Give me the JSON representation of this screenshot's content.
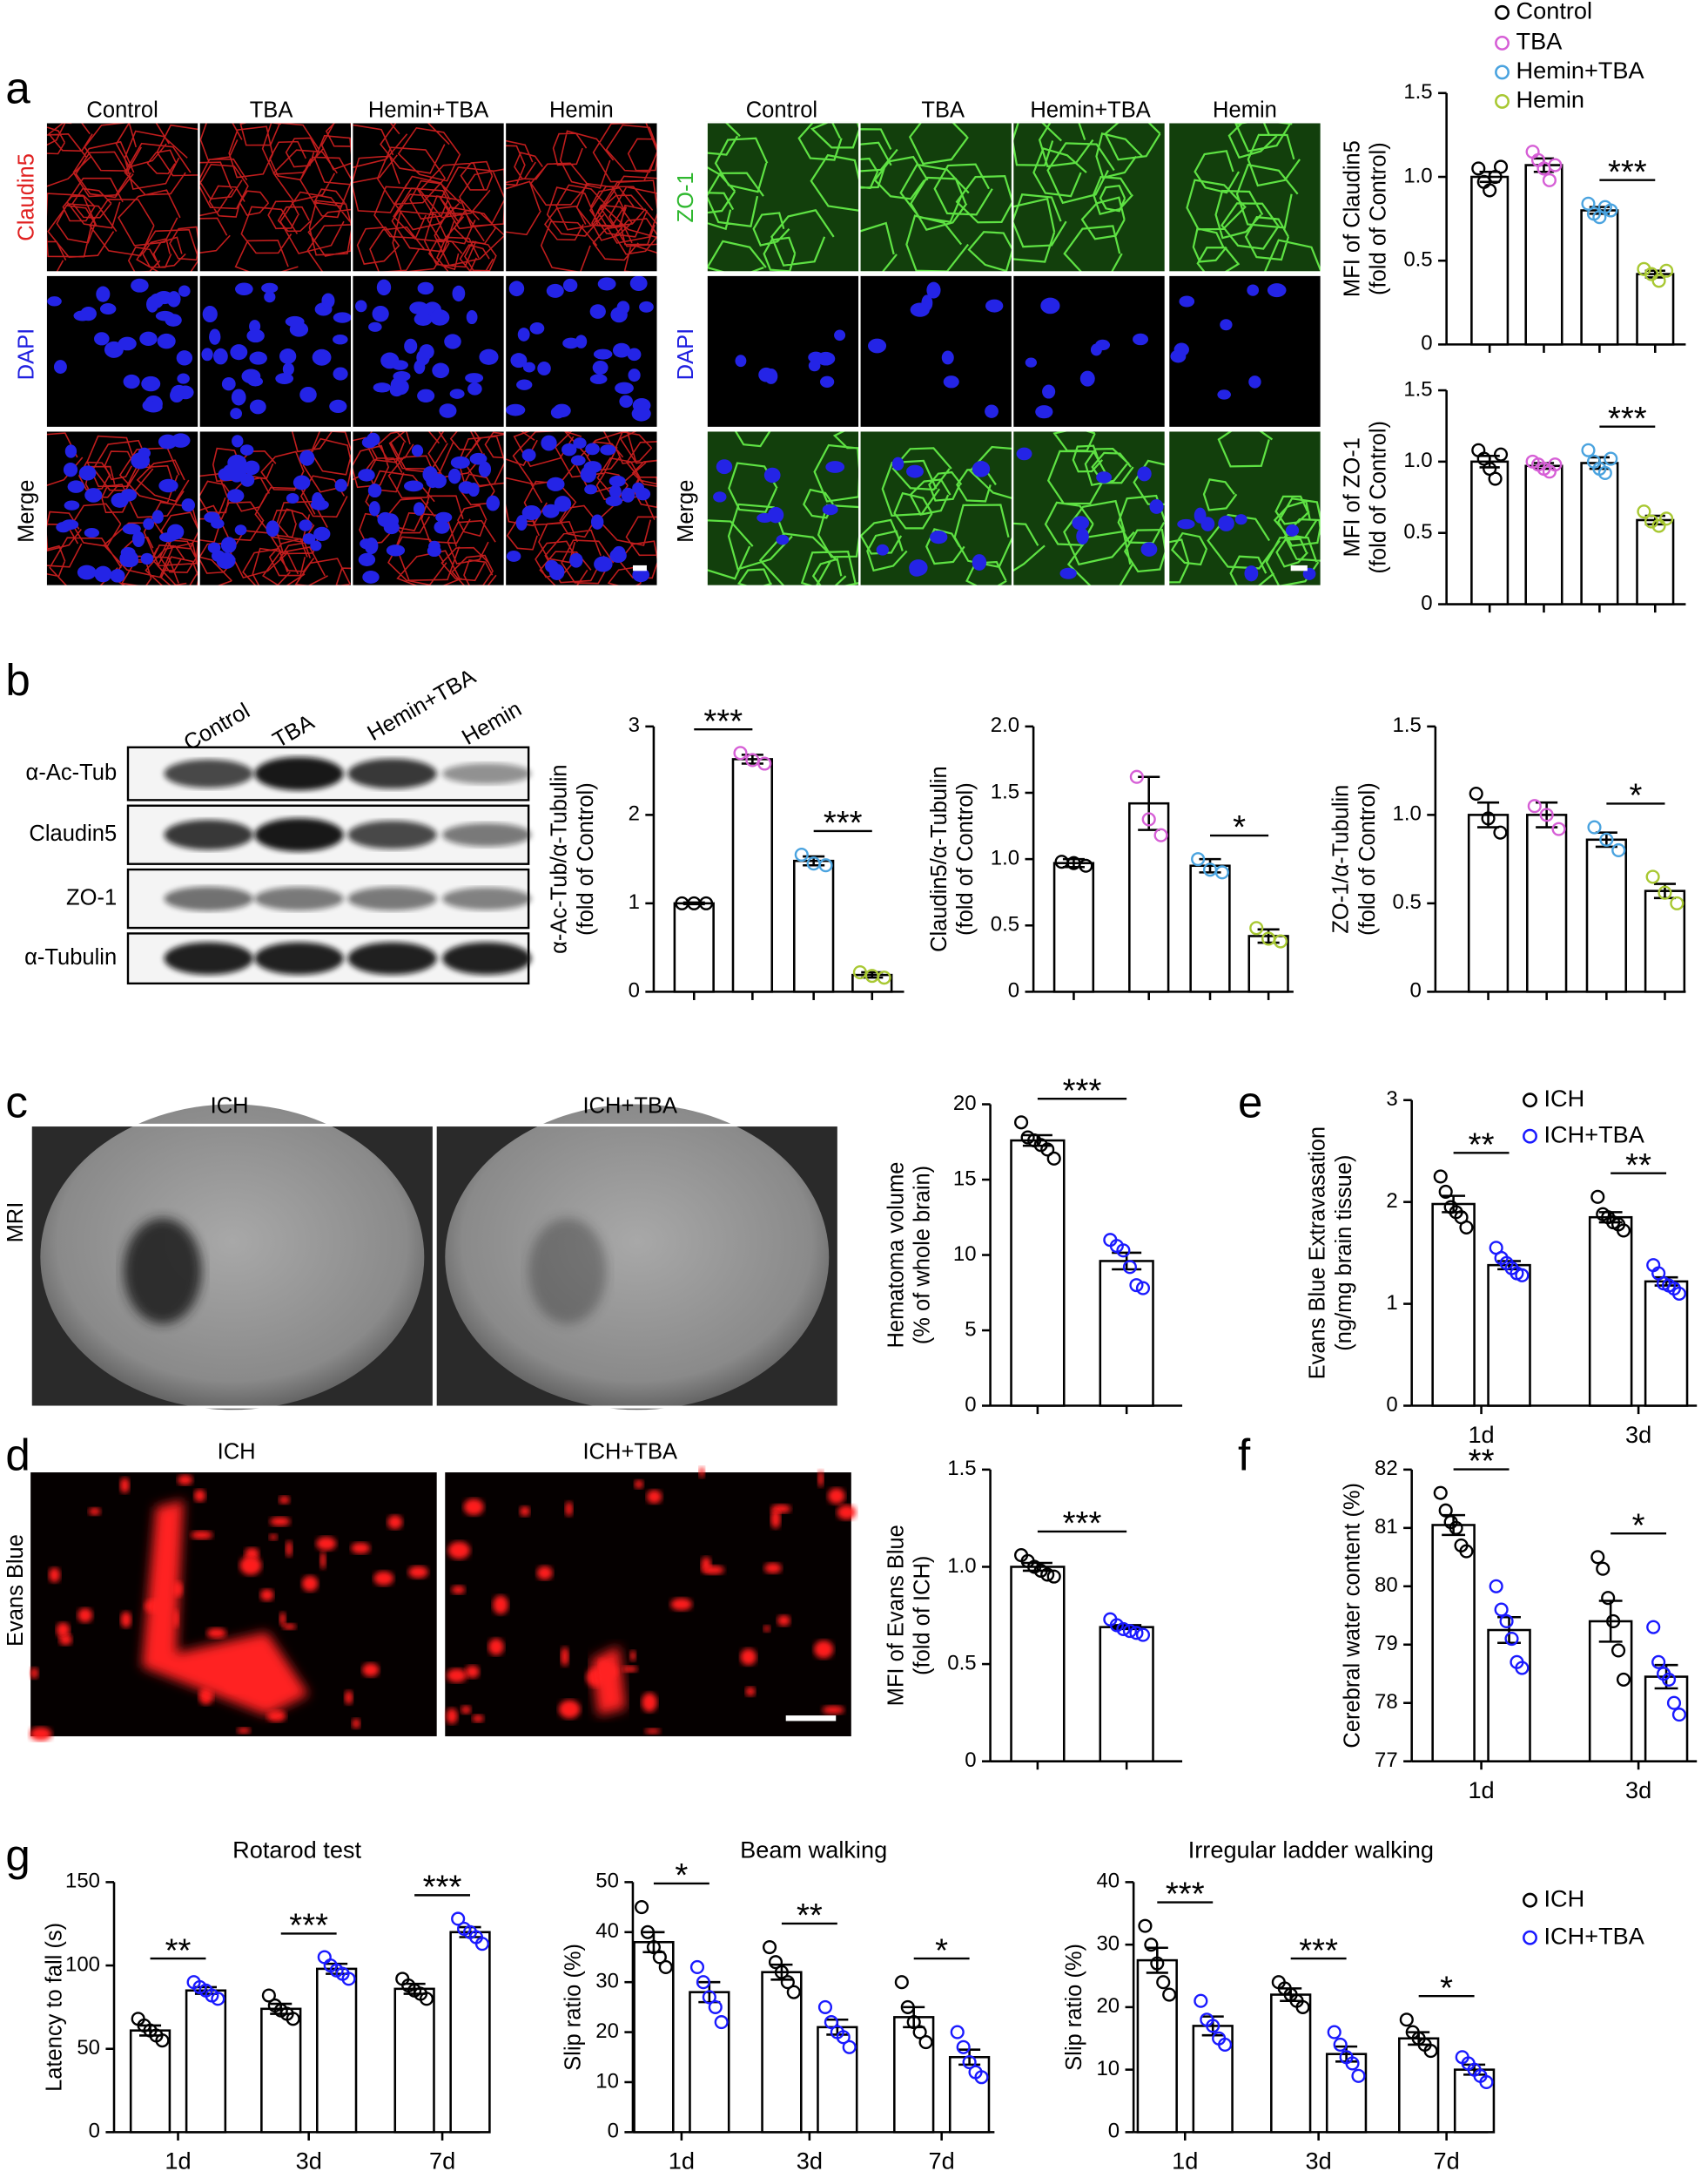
{
  "panels": {
    "a": {
      "letter": "a",
      "left": {
        "columns": [
          "Control",
          "TBA",
          "Hemin+TBA",
          "Hemin"
        ],
        "rows": [
          "Claudin5",
          "DAPI",
          "Merge"
        ]
      },
      "right": {
        "columns": [
          "Control",
          "TBA",
          "Hemin+TBA",
          "Hemin"
        ],
        "rows": [
          "ZO-1",
          "DAPI",
          "Merge"
        ]
      }
    },
    "b": {
      "letter": "b",
      "columns": [
        "Control",
        "TBA",
        "Hemin+TBA",
        "Hemin"
      ],
      "rows": [
        "α-Ac-Tub",
        "Claudin5",
        "ZO-1",
        "α-Tubulin"
      ]
    },
    "c": {
      "letter": "c",
      "columns": [
        "ICH",
        "ICH+TBA"
      ],
      "row": "MRI"
    },
    "d": {
      "letter": "d",
      "columns": [
        "ICH",
        "ICH+TBA"
      ],
      "row": "Evans Blue"
    },
    "e": {
      "letter": "e"
    },
    "f": {
      "letter": "f"
    },
    "g": {
      "letter": "g"
    }
  },
  "chart_data": [
    {
      "type": "bar",
      "ylabel": [
        "MFI of Claudin5",
        "(fold of Control)"
      ],
      "categories": [
        null,
        null,
        null,
        null
      ],
      "values": [
        1.0,
        1.07,
        0.8,
        0.42
      ],
      "errors": [
        0.03,
        0.04,
        0.02,
        0.02
      ],
      "points": [
        [
          1.05,
          0.97,
          0.92,
          1.0,
          1.06
        ],
        [
          1.15,
          1.1,
          1.05,
          0.98,
          1.07
        ],
        [
          0.84,
          0.78,
          0.76,
          0.82,
          0.8
        ],
        [
          0.45,
          0.42,
          0.38,
          0.44
        ]
      ],
      "colors": [
        "#000000",
        "#d65fd6",
        "#4aa3df",
        "#a8c832"
      ],
      "legend": "top",
      "legend_names": [
        "Control",
        "TBA",
        "Hemin+TBA",
        "Hemin"
      ],
      "ylim": [
        0,
        1.5
      ],
      "yticks": [
        0,
        0.5,
        {
          "value": 1,
          "label": "1.0"
        },
        1.5
      ],
      "annotations": [
        {
          "text": "***",
          "between": [
            2,
            3
          ]
        }
      ]
    },
    {
      "type": "bar",
      "ylabel": [
        "MFI of ZO-1",
        "(fold of Control)"
      ],
      "categories": [
        null,
        null,
        null,
        null
      ],
      "values": [
        1.0,
        0.97,
        0.99,
        0.59
      ],
      "errors": [
        0.04,
        0.02,
        0.04,
        0.03
      ],
      "points": [
        [
          1.08,
          1.02,
          0.95,
          0.88,
          1.05
        ],
        [
          1.0,
          0.98,
          0.95,
          0.93,
          0.98
        ],
        [
          1.08,
          1.0,
          0.95,
          0.92,
          1.02
        ],
        [
          0.65,
          0.58,
          0.55,
          0.6
        ]
      ],
      "colors": [
        "#000000",
        "#d65fd6",
        "#4aa3df",
        "#a8c832"
      ],
      "ylim": [
        0,
        1.5
      ],
      "yticks": [
        0,
        0.5,
        {
          "value": 1,
          "label": "1.0"
        },
        1.5
      ],
      "annotations": [
        {
          "text": "***",
          "between": [
            2,
            3
          ]
        }
      ]
    },
    {
      "type": "bar",
      "ylabel": [
        "α-Ac-Tub/α-Tubulin",
        "(fold of Control)"
      ],
      "categories": [
        null,
        null,
        null,
        null
      ],
      "values": [
        1.0,
        2.63,
        1.48,
        0.19
      ],
      "errors": [
        0.01,
        0.05,
        0.05,
        0.03
      ],
      "points": [
        [
          1.0,
          1.0,
          1.0
        ],
        [
          2.7,
          2.62,
          2.58
        ],
        [
          1.55,
          1.45,
          1.43
        ],
        [
          0.22,
          0.18,
          0.16
        ]
      ],
      "colors": [
        "#000000",
        "#d65fd6",
        "#4aa3df",
        "#a8c832"
      ],
      "ylim": [
        0,
        3
      ],
      "yticks": [
        0,
        1,
        2,
        3
      ],
      "annotations": [
        {
          "text": "***",
          "between": [
            0,
            1
          ]
        },
        {
          "text": "***",
          "between": [
            2,
            3
          ]
        }
      ]
    },
    {
      "type": "bar",
      "ylabel": [
        "Claudin5/α-Tubulin",
        "(fold of Control)"
      ],
      "categories": [
        null,
        null,
        null,
        null
      ],
      "values": [
        0.97,
        1.42,
        0.95,
        0.42
      ],
      "errors": [
        0.03,
        0.2,
        0.05,
        0.05
      ],
      "points": [
        [
          0.98,
          0.97,
          0.95
        ],
        [
          1.62,
          1.3,
          1.18
        ],
        [
          1.0,
          0.92,
          0.9
        ],
        [
          0.48,
          0.4,
          0.38
        ]
      ],
      "colors": [
        "#000000",
        "#d65fd6",
        "#4aa3df",
        "#a8c832"
      ],
      "ylim": [
        0,
        2
      ],
      "yticks": [
        0,
        0.5,
        {
          "value": 1,
          "label": "1.0"
        },
        1.5,
        {
          "value": 2,
          "label": "2.0"
        }
      ],
      "annotations": [
        {
          "text": "*",
          "between": [
            2,
            3
          ]
        }
      ]
    },
    {
      "type": "bar",
      "ylabel": [
        "ZO-1/α-Tubulin",
        "(fold of Control)"
      ],
      "categories": [
        null,
        null,
        null,
        null
      ],
      "values": [
        1.0,
        1.0,
        0.86,
        0.57
      ],
      "errors": [
        0.07,
        0.07,
        0.04,
        0.04
      ],
      "points": [
        [
          1.12,
          0.98,
          0.9
        ],
        [
          1.05,
          1.0,
          0.92
        ],
        [
          0.93,
          0.86,
          0.8
        ],
        [
          0.65,
          0.56,
          0.5
        ]
      ],
      "colors": [
        "#000000",
        "#d65fd6",
        "#4aa3df",
        "#a8c832"
      ],
      "ylim": [
        0,
        1.5
      ],
      "yticks": [
        0,
        0.5,
        {
          "value": 1,
          "label": "1.0"
        },
        1.5
      ],
      "annotations": [
        {
          "text": "*",
          "between": [
            2,
            3
          ]
        }
      ]
    },
    {
      "type": "bar",
      "ylabel": [
        "Hematoma volume",
        "(% of whole brain)"
      ],
      "categories": [
        null,
        null
      ],
      "values": [
        17.6,
        9.6
      ],
      "errors": [
        0.35,
        0.55
      ],
      "points": [
        [
          18.8,
          17.8,
          17.6,
          17.3,
          17.0,
          16.4
        ],
        [
          11.0,
          10.6,
          10.3,
          9.2,
          8.0,
          7.8
        ]
      ],
      "colors": [
        "#000000",
        "#1a1aff"
      ],
      "ylim": [
        0,
        20
      ],
      "yticks": [
        0,
        5,
        10,
        15,
        20
      ],
      "annotations": [
        {
          "text": "***",
          "between": [
            0,
            1
          ]
        }
      ]
    },
    {
      "type": "bar",
      "ylabel": [
        "MFI of Evans Blue",
        "(fold of ICH)"
      ],
      "categories": [
        null,
        null
      ],
      "values": [
        1.0,
        0.69
      ],
      "errors": [
        0.02,
        0.01
      ],
      "points": [
        [
          1.06,
          1.03,
          1.0,
          0.98,
          0.96,
          0.95
        ],
        [
          0.73,
          0.7,
          0.68,
          0.67,
          0.66,
          0.65
        ]
      ],
      "colors": [
        "#000000",
        "#1a1aff"
      ],
      "ylim": [
        0,
        1.5
      ],
      "yticks": [
        0,
        0.5,
        {
          "value": 1,
          "label": "1.0"
        },
        1.5
      ],
      "annotations": [
        {
          "text": "***",
          "between": [
            0,
            1
          ]
        }
      ]
    },
    {
      "type": "grouped_bar",
      "ylabel": [
        "Evans Blue Extravasation",
        "(ng/mg brain tissue)"
      ],
      "categories": [
        "1d",
        "3d"
      ],
      "series": [
        {
          "name": "ICH",
          "color": "#000000",
          "values": [
            1.98,
            1.85
          ],
          "errors": [
            0.08,
            0.05
          ],
          "points": [
            [
              2.25,
              2.1,
              1.95,
              1.9,
              1.85,
              1.75
            ],
            [
              2.05,
              1.88,
              1.85,
              1.8,
              1.78,
              1.72
            ]
          ]
        },
        {
          "name": "ICH+TBA",
          "color": "#1a1aff",
          "values": [
            1.38,
            1.22
          ],
          "errors": [
            0.04,
            0.04
          ],
          "points": [
            [
              1.55,
              1.45,
              1.4,
              1.35,
              1.3,
              1.28
            ],
            [
              1.38,
              1.3,
              1.2,
              1.18,
              1.15,
              1.1
            ]
          ]
        }
      ],
      "legend": "top-right",
      "ylim": [
        0,
        3
      ],
      "yticks": [
        0,
        1,
        2,
        3
      ],
      "annotations": [
        {
          "text": "**",
          "category": 0
        },
        {
          "text": "**",
          "category": 1
        }
      ]
    },
    {
      "type": "grouped_bar",
      "ylabel": [
        "Cerebral water content (%)"
      ],
      "categories": [
        "1d",
        "3d"
      ],
      "series": [
        {
          "color": "#000000",
          "values": [
            81.05,
            79.4
          ],
          "errors": [
            0.17,
            0.35
          ],
          "points": [
            [
              81.6,
              81.3,
              81.1,
              81.0,
              80.7,
              80.6
            ],
            [
              80.5,
              80.3,
              79.8,
              79.4,
              78.9,
              78.4
            ]
          ]
        },
        {
          "color": "#1a1aff",
          "values": [
            79.25,
            78.45
          ],
          "errors": [
            0.22,
            0.2
          ],
          "points": [
            [
              80.0,
              79.6,
              79.4,
              79.1,
              78.7,
              78.6
            ],
            [
              79.3,
              78.7,
              78.5,
              78.4,
              78.0,
              77.8
            ]
          ]
        }
      ],
      "ylim": [
        77,
        82
      ],
      "yticks": [
        77,
        78,
        79,
        80,
        81,
        82
      ],
      "annotations": [
        {
          "text": "**",
          "category": 0
        },
        {
          "text": "*",
          "category": 1
        }
      ]
    },
    {
      "type": "grouped_bar",
      "title": "Rotarod test",
      "ylabel": [
        "Latency to fall (s)"
      ],
      "categories": [
        "1d",
        "3d",
        "7d"
      ],
      "series": [
        {
          "color": "#000000",
          "values": [
            61,
            74,
            86
          ],
          "errors": [
            3,
            3,
            3
          ],
          "points": [
            [
              68,
              64,
              61,
              58,
              55
            ],
            [
              82,
              76,
              73,
              71,
              68
            ],
            [
              92,
              88,
              85,
              83,
              80
            ]
          ]
        },
        {
          "color": "#1a1aff",
          "values": [
            85,
            98,
            120
          ],
          "errors": [
            2,
            3,
            3
          ],
          "points": [
            [
              90,
              87,
              85,
              82,
              80
            ],
            [
              105,
              100,
              97,
              95,
              92
            ],
            [
              128,
              122,
              120,
              117,
              113
            ]
          ]
        }
      ],
      "ylim": [
        0,
        150
      ],
      "yticks": [
        0,
        50,
        100,
        150
      ],
      "annotations": [
        {
          "text": "**",
          "category": 0
        },
        {
          "text": "***",
          "category": 1
        },
        {
          "text": "***",
          "category": 2
        }
      ]
    },
    {
      "type": "grouped_bar",
      "title": "Beam walking",
      "ylabel": [
        "Slip ratio (%)"
      ],
      "categories": [
        "1d",
        "3d",
        "7d"
      ],
      "series": [
        {
          "color": "#000000",
          "values": [
            38,
            32,
            23
          ],
          "errors": [
            2,
            1.5,
            2
          ],
          "points": [
            [
              45,
              40,
              37,
              35,
              33
            ],
            [
              37,
              34,
              32,
              30,
              28
            ],
            [
              30,
              25,
              22,
              20,
              18
            ]
          ]
        },
        {
          "color": "#1a1aff",
          "values": [
            28,
            21,
            15
          ],
          "errors": [
            2,
            1.5,
            1.5
          ],
          "points": [
            [
              33,
              30,
              27,
              25,
              22
            ],
            [
              25,
              22,
              20,
              19,
              17
            ],
            [
              20,
              17,
              14,
              12,
              11
            ]
          ]
        }
      ],
      "ylim": [
        0,
        50
      ],
      "yticks": [
        0,
        10,
        20,
        30,
        40,
        50
      ],
      "annotations": [
        {
          "text": "*",
          "category": 0
        },
        {
          "text": "**",
          "category": 1
        },
        {
          "text": "*",
          "category": 2
        }
      ]
    },
    {
      "type": "grouped_bar",
      "title": "Irregular ladder walking",
      "ylabel": [
        "Slip ratio (%)"
      ],
      "categories": [
        "1d",
        "3d",
        "7d"
      ],
      "series": [
        {
          "name": "ICH",
          "color": "#000000",
          "values": [
            27.5,
            22,
            15
          ],
          "errors": [
            2,
            1,
            1
          ],
          "points": [
            [
              33,
              30,
              27,
              24,
              22
            ],
            [
              24,
              23,
              22,
              21,
              20
            ],
            [
              18,
              16,
              15,
              14,
              13
            ]
          ]
        },
        {
          "name": "ICH+TBA",
          "color": "#1a1aff",
          "values": [
            17,
            12.5,
            10
          ],
          "errors": [
            1.5,
            1.2,
            0.8
          ],
          "points": [
            [
              21,
              18,
              17,
              15,
              14
            ],
            [
              16,
              14,
              12,
              11,
              9
            ],
            [
              12,
              11,
              10,
              9,
              8
            ]
          ]
        }
      ],
      "legend": "right",
      "ylim": [
        0,
        40
      ],
      "yticks": [
        0,
        10,
        20,
        30,
        40
      ],
      "annotations": [
        {
          "text": "***",
          "category": 0
        },
        {
          "text": "***",
          "category": 1
        },
        {
          "text": "*",
          "category": 2
        }
      ]
    }
  ]
}
